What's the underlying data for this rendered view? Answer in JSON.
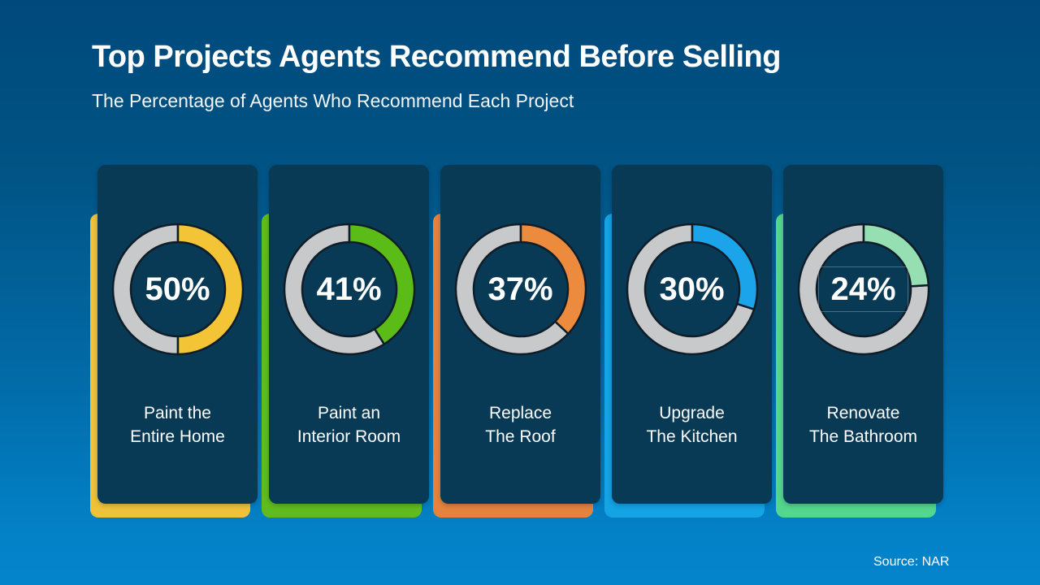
{
  "page": {
    "title": "Top Projects Agents Recommend Before Selling",
    "subtitle": "The Percentage of Agents Who Recommend Each Project",
    "source": "Source: NAR"
  },
  "colors": {
    "background_top": "#00497C",
    "background_bottom": "#0484CB",
    "card_background": "#083955",
    "donut_track": "#C7C9CB",
    "donut_outline": "#0F1D28",
    "text": "#FFFFFF"
  },
  "chart_data": {
    "type": "pie",
    "subtype": "donut-gauge-row",
    "title": "Top Projects Agents Recommend Before Selling",
    "subtitle": "The Percentage of Agents Who Recommend Each Project",
    "categories": [
      "Paint the Entire Home",
      "Paint an Interior Room",
      "Replace The Roof",
      "Upgrade The Kitchen",
      "Renovate The Bathroom"
    ],
    "values": [
      50,
      41,
      37,
      30,
      24
    ],
    "unit": "%",
    "start_angle_deg": 0,
    "direction": "clockwise",
    "track_color": "#C7C9CB",
    "segment_colors": [
      "#F2C436",
      "#5BBC17",
      "#EC8B3D",
      "#1BA4E9",
      "#96DFB3"
    ],
    "source": "Source: NAR"
  },
  "projects": [
    {
      "percent": 50,
      "percent_label": "50%",
      "label_line1": "Paint the",
      "label_line2": "Entire Home",
      "donut_color": "#F2C436",
      "accent_color": "#EFC23B",
      "boxed": false
    },
    {
      "percent": 41,
      "percent_label": "41%",
      "label_line1": "Paint an",
      "label_line2": "Interior Room",
      "donut_color": "#5BBC17",
      "accent_color": "#60BC1E",
      "boxed": false
    },
    {
      "percent": 37,
      "percent_label": "37%",
      "label_line1": "Replace",
      "label_line2": "The Roof",
      "donut_color": "#EC8B3D",
      "accent_color": "#E5823D",
      "boxed": false
    },
    {
      "percent": 30,
      "percent_label": "30%",
      "label_line1": "Upgrade",
      "label_line2": "The Kitchen",
      "donut_color": "#1BA4E9",
      "accent_color": "#14A3E4",
      "boxed": false
    },
    {
      "percent": 24,
      "percent_label": "24%",
      "label_line1": "Renovate",
      "label_line2": "The Bathroom",
      "donut_color": "#96DFB3",
      "accent_color": "#53D68D",
      "boxed": true
    }
  ]
}
